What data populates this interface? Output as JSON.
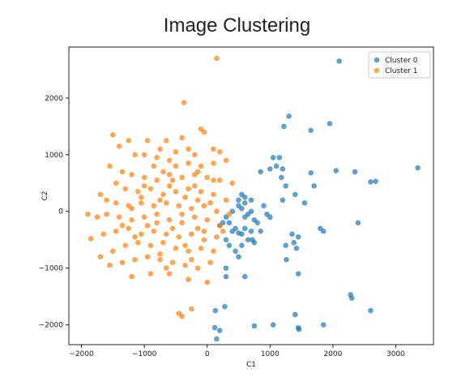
{
  "chart_data": {
    "type": "scatter",
    "title": "Image Clustering",
    "xlabel": "C1",
    "ylabel": "C2",
    "xlim": [
      -2200,
      3600
    ],
    "ylim": [
      -2350,
      2900
    ],
    "xticks": [
      -2000,
      -1000,
      0,
      1000,
      2000,
      3000
    ],
    "yticks": [
      -2000,
      -1000,
      0,
      1000,
      2000
    ],
    "grid": false,
    "legend_position": "top-right",
    "series": [
      {
        "name": "Cluster 0",
        "color": "#1f77b4",
        "points": [
          [
            2100,
            2650
          ],
          [
            1300,
            1680
          ],
          [
            1220,
            1500
          ],
          [
            1950,
            1550
          ],
          [
            1650,
            1430
          ],
          [
            1050,
            950
          ],
          [
            1150,
            950
          ],
          [
            1200,
            750
          ],
          [
            1100,
            800
          ],
          [
            1000,
            750
          ],
          [
            850,
            700
          ],
          [
            1180,
            600
          ],
          [
            1250,
            450
          ],
          [
            2050,
            720
          ],
          [
            1650,
            680
          ],
          [
            2350,
            700
          ],
          [
            2600,
            520
          ],
          [
            2680,
            530
          ],
          [
            3350,
            770
          ],
          [
            1700,
            450
          ],
          [
            1200,
            200
          ],
          [
            1400,
            300
          ],
          [
            1550,
            150
          ],
          [
            1350,
            -400
          ],
          [
            1450,
            -450
          ],
          [
            1800,
            -300
          ],
          [
            1850,
            -350
          ],
          [
            2400,
            -200
          ],
          [
            1000,
            -100
          ],
          [
            950,
            -50
          ],
          [
            1250,
            -600
          ],
          [
            1380,
            -550
          ],
          [
            1420,
            -650
          ],
          [
            1260,
            -850
          ],
          [
            1450,
            -1100
          ],
          [
            2280,
            -1470
          ],
          [
            2300,
            -1530
          ],
          [
            2600,
            -1750
          ],
          [
            1400,
            -1820
          ],
          [
            1850,
            -2000
          ],
          [
            1450,
            -2050
          ],
          [
            1460,
            -2080
          ],
          [
            1050,
            -2000
          ],
          [
            750,
            -2020
          ],
          [
            280,
            -1680
          ],
          [
            130,
            -1750
          ],
          [
            120,
            -2050
          ],
          [
            150,
            -2250
          ],
          [
            200,
            -2100
          ],
          [
            300,
            -1150
          ],
          [
            600,
            -1150
          ],
          [
            300,
            -1000
          ],
          [
            500,
            -800
          ],
          [
            300,
            -500
          ],
          [
            400,
            -350
          ],
          [
            450,
            -300
          ],
          [
            500,
            -380
          ],
          [
            550,
            -400
          ],
          [
            600,
            -300
          ],
          [
            700,
            -350
          ],
          [
            720,
            -500
          ],
          [
            750,
            -550
          ],
          [
            650,
            -500
          ],
          [
            600,
            -100
          ],
          [
            550,
            50
          ],
          [
            500,
            100
          ],
          [
            600,
            150
          ],
          [
            650,
            -50
          ],
          [
            700,
            0
          ],
          [
            400,
            0
          ],
          [
            300,
            -100
          ],
          [
            250,
            -200
          ],
          [
            200,
            -250
          ],
          [
            350,
            -600
          ],
          [
            450,
            -700
          ],
          [
            500,
            200
          ],
          [
            550,
            300
          ],
          [
            600,
            250
          ],
          [
            700,
            200
          ],
          [
            900,
            100
          ],
          [
            800,
            -200
          ],
          [
            850,
            -350
          ],
          [
            750,
            -150
          ],
          [
            550,
            -600
          ],
          [
            350,
            -200
          ]
        ]
      },
      {
        "name": "Cluster 1",
        "color": "#ff7f0e",
        "points": [
          [
            150,
            2700
          ],
          [
            -370,
            1920
          ],
          [
            -1500,
            1350
          ],
          [
            -1400,
            1150
          ],
          [
            -1250,
            1250
          ],
          [
            -950,
            1250
          ],
          [
            -650,
            1250
          ],
          [
            -400,
            1300
          ],
          [
            -50,
            1400
          ],
          [
            -100,
            1450
          ],
          [
            -300,
            1100
          ],
          [
            100,
            1100
          ],
          [
            200,
            1050
          ],
          [
            -1000,
            1000
          ],
          [
            -800,
            950
          ],
          [
            -600,
            900
          ],
          [
            -850,
            800
          ],
          [
            -700,
            700
          ],
          [
            -500,
            800
          ],
          [
            -300,
            850
          ],
          [
            -100,
            800
          ],
          [
            100,
            850
          ],
          [
            300,
            900
          ],
          [
            -1550,
            800
          ],
          [
            -1350,
            700
          ],
          [
            -1200,
            650
          ],
          [
            -1000,
            600
          ],
          [
            -800,
            550
          ],
          [
            -600,
            650
          ],
          [
            -400,
            600
          ],
          [
            -200,
            650
          ],
          [
            0,
            600
          ],
          [
            200,
            550
          ],
          [
            400,
            500
          ],
          [
            -1450,
            500
          ],
          [
            -1300,
            400
          ],
          [
            -1100,
            350
          ],
          [
            -900,
            400
          ],
          [
            -700,
            300
          ],
          [
            -500,
            350
          ],
          [
            -300,
            400
          ],
          [
            -100,
            350
          ],
          [
            100,
            300
          ],
          [
            300,
            200
          ],
          [
            -1700,
            300
          ],
          [
            -1600,
            200
          ],
          [
            -1450,
            150
          ],
          [
            -1250,
            100
          ],
          [
            -1050,
            150
          ],
          [
            -850,
            100
          ],
          [
            -650,
            150
          ],
          [
            -450,
            100
          ],
          [
            -250,
            50
          ],
          [
            -50,
            100
          ],
          [
            150,
            0
          ],
          [
            -1900,
            -50
          ],
          [
            -1750,
            -100
          ],
          [
            -1600,
            -50
          ],
          [
            -1400,
            -100
          ],
          [
            -1200,
            -150
          ],
          [
            -1000,
            -100
          ],
          [
            -800,
            -50
          ],
          [
            -600,
            -150
          ],
          [
            -400,
            -200
          ],
          [
            -200,
            -100
          ],
          [
            0,
            -150
          ],
          [
            200,
            -250
          ],
          [
            -1850,
            -480
          ],
          [
            -1650,
            -400
          ],
          [
            -1450,
            -350
          ],
          [
            -1250,
            -300
          ],
          [
            -1050,
            -400
          ],
          [
            -850,
            -350
          ],
          [
            -650,
            -400
          ],
          [
            -450,
            -450
          ],
          [
            -250,
            -400
          ],
          [
            -50,
            -350
          ],
          [
            150,
            -450
          ],
          [
            -1700,
            -800
          ],
          [
            -1500,
            -700
          ],
          [
            -1300,
            -600
          ],
          [
            -1100,
            -550
          ],
          [
            -900,
            -600
          ],
          [
            -700,
            -550
          ],
          [
            -500,
            -650
          ],
          [
            -300,
            -700
          ],
          [
            -100,
            -650
          ],
          [
            100,
            -700
          ],
          [
            -1550,
            -950
          ],
          [
            -1350,
            -900
          ],
          [
            -1150,
            -850
          ],
          [
            -950,
            -800
          ],
          [
            -750,
            -850
          ],
          [
            -550,
            -900
          ],
          [
            -350,
            -950
          ],
          [
            -150,
            -1000
          ],
          [
            50,
            -900
          ],
          [
            -1200,
            -1150
          ],
          [
            -900,
            -1100
          ],
          [
            -600,
            -1100
          ],
          [
            -300,
            -1200
          ],
          [
            0,
            -1250
          ],
          [
            -450,
            -1800
          ],
          [
            -400,
            -1850
          ],
          [
            -250,
            -1720
          ],
          [
            -1150,
            1000
          ],
          [
            -750,
            1100
          ],
          [
            -500,
            1050
          ],
          [
            -200,
            1000
          ],
          [
            -1050,
            250
          ],
          [
            -750,
            200
          ],
          [
            -350,
            250
          ],
          [
            -150,
            200
          ],
          [
            50,
            150
          ],
          [
            -1350,
            -250
          ],
          [
            -950,
            -250
          ],
          [
            -550,
            -300
          ],
          [
            -150,
            -300
          ],
          [
            -1150,
            -450
          ],
          [
            -750,
            -750
          ],
          [
            -350,
            -600
          ],
          [
            -50,
            -500
          ],
          [
            250,
            -350
          ],
          [
            -650,
            -1000
          ],
          [
            -250,
            -850
          ],
          [
            -1000,
            450
          ],
          [
            -600,
            450
          ],
          [
            -200,
            450
          ],
          [
            100,
            550
          ],
          [
            -400,
            -50
          ],
          [
            -800,
            -200
          ],
          [
            -1200,
            50
          ],
          [
            -150,
            700
          ],
          [
            -550,
            550
          ],
          [
            350,
            -50
          ]
        ]
      }
    ]
  }
}
